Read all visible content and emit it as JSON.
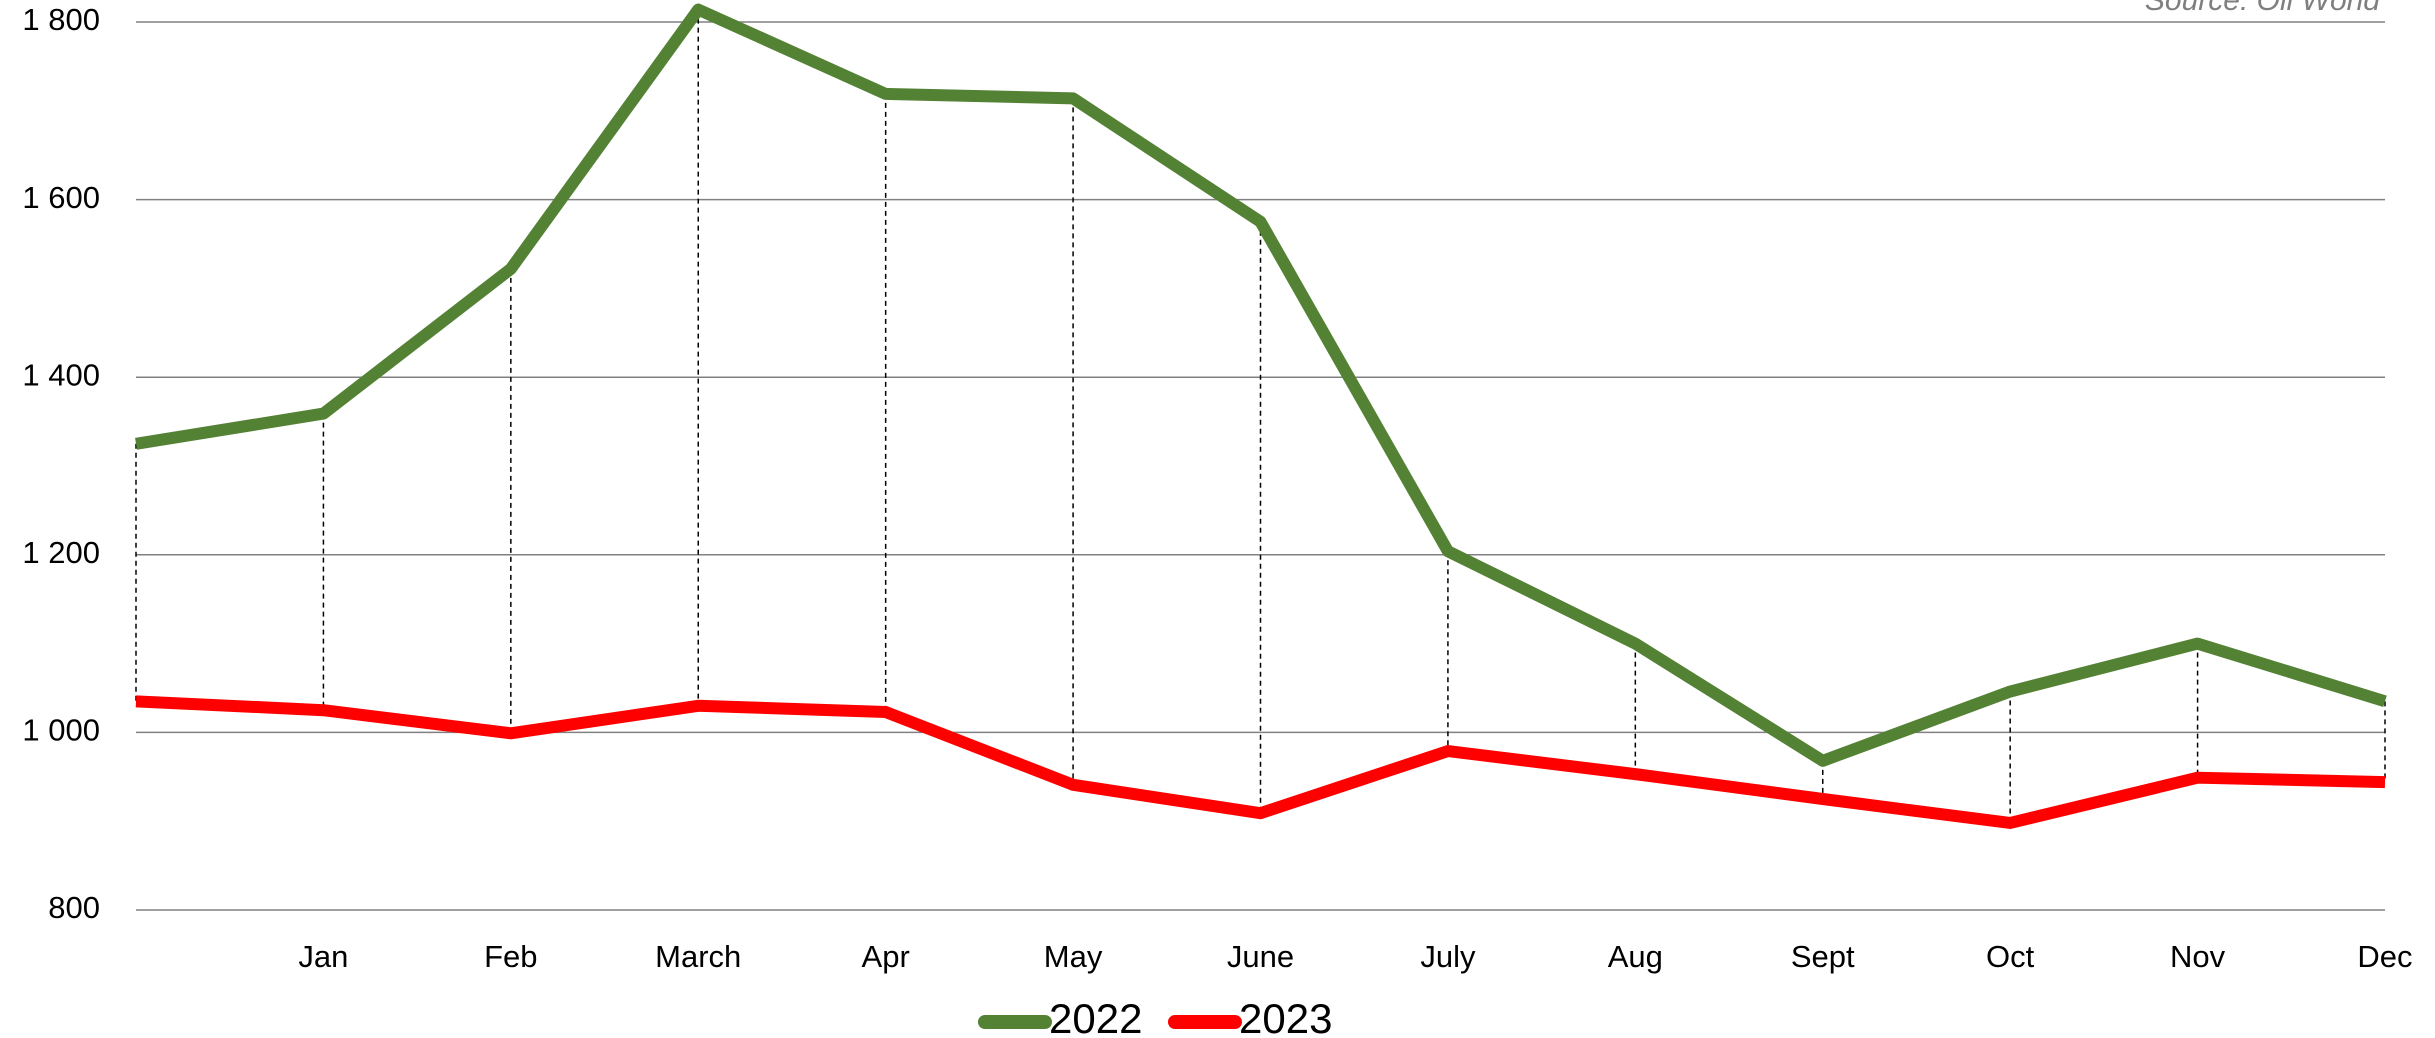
{
  "chart_data": {
    "type": "line",
    "source": "Source: Oil World",
    "categories": [
      null,
      "Jan",
      "Feb",
      "March",
      "Apr",
      "May",
      "June",
      "July",
      "Aug",
      "Sept",
      "Oct",
      "Nov",
      "Dec"
    ],
    "series": [
      {
        "name": "2022",
        "color": "#548235",
        "values": [
          1325,
          1359,
          1522,
          1814,
          1719,
          1714,
          1575,
          1204,
          1100,
          968,
          1046,
          1100,
          1035
        ]
      },
      {
        "name": "2023",
        "color": "#ff0000",
        "values": [
          1035,
          1025,
          999,
          1030,
          1023,
          941,
          909,
          979,
          953,
          925,
          898,
          949,
          944
        ]
      }
    ],
    "ylim": [
      800,
      1800
    ],
    "yticks": [
      800,
      {
        "value": 1000,
        "label": "1 000"
      },
      {
        "value": 1200,
        "label": "1 200"
      },
      {
        "value": 1400,
        "label": "1 400"
      },
      {
        "value": 1600,
        "label": "1 600"
      },
      {
        "value": 1800,
        "label": "1 800"
      }
    ],
    "grid": true,
    "drop_lines": true,
    "legend": "bottom"
  }
}
